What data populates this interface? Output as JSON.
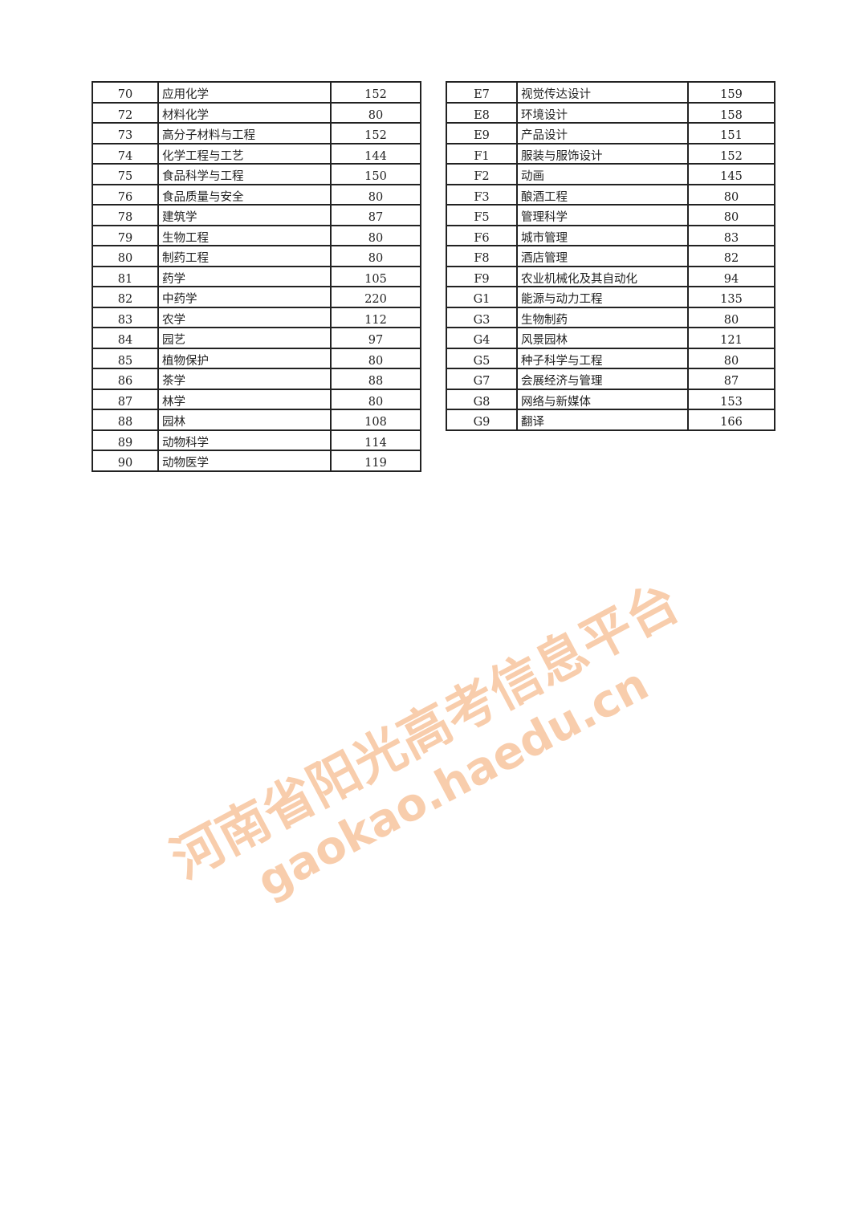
{
  "left_table": {
    "rows": [
      [
        "70",
        "应用化学",
        "152"
      ],
      [
        "72",
        "材料化学",
        "80"
      ],
      [
        "73",
        "高分子材料与工程",
        "152"
      ],
      [
        "74",
        "化学工程与工艺",
        "144"
      ],
      [
        "75",
        "食品科学与工程",
        "150"
      ],
      [
        "76",
        "食品质量与安全",
        "80"
      ],
      [
        "78",
        "建筑学",
        "87"
      ],
      [
        "79",
        "生物工程",
        "80"
      ],
      [
        "80",
        "制药工程",
        "80"
      ],
      [
        "81",
        "药学",
        "105"
      ],
      [
        "82",
        "中药学",
        "220"
      ],
      [
        "83",
        "农学",
        "112"
      ],
      [
        "84",
        "园艺",
        "97"
      ],
      [
        "85",
        "植物保护",
        "80"
      ],
      [
        "86",
        "茶学",
        "88"
      ],
      [
        "87",
        "林学",
        "80"
      ],
      [
        "88",
        "园林",
        "108"
      ],
      [
        "89",
        "动物科学",
        "114"
      ],
      [
        "90",
        "动物医学",
        "119"
      ]
    ]
  },
  "right_table": {
    "rows": [
      [
        "E7",
        "视觉传达设计",
        "159"
      ],
      [
        "E8",
        "环境设计",
        "158"
      ],
      [
        "E9",
        "产品设计",
        "151"
      ],
      [
        "F1",
        "服装与服饰设计",
        "152"
      ],
      [
        "F2",
        "动画",
        "145"
      ],
      [
        "F3",
        "酿酒工程",
        "80"
      ],
      [
        "F5",
        "管理科学",
        "80"
      ],
      [
        "F6",
        "城市管理",
        "83"
      ],
      [
        "F8",
        "酒店管理",
        "82"
      ],
      [
        "F9",
        "农业机械化及其自动化",
        "94"
      ],
      [
        "G1",
        "能源与动力工程",
        "135"
      ],
      [
        "G3",
        "生物制药",
        "80"
      ],
      [
        "G4",
        "风景园林",
        "121"
      ],
      [
        "G5",
        "种子科学与工程",
        "80"
      ],
      [
        "G7",
        "会展经济与管理",
        "87"
      ],
      [
        "G8",
        "网络与新媒体",
        "153"
      ],
      [
        "G9",
        "翻译",
        "166"
      ]
    ]
  },
  "watermark": {
    "line1": "河南省阳光高考信息平台",
    "line2": "gaokao.haedu.cn",
    "color": "#f4a66a"
  }
}
